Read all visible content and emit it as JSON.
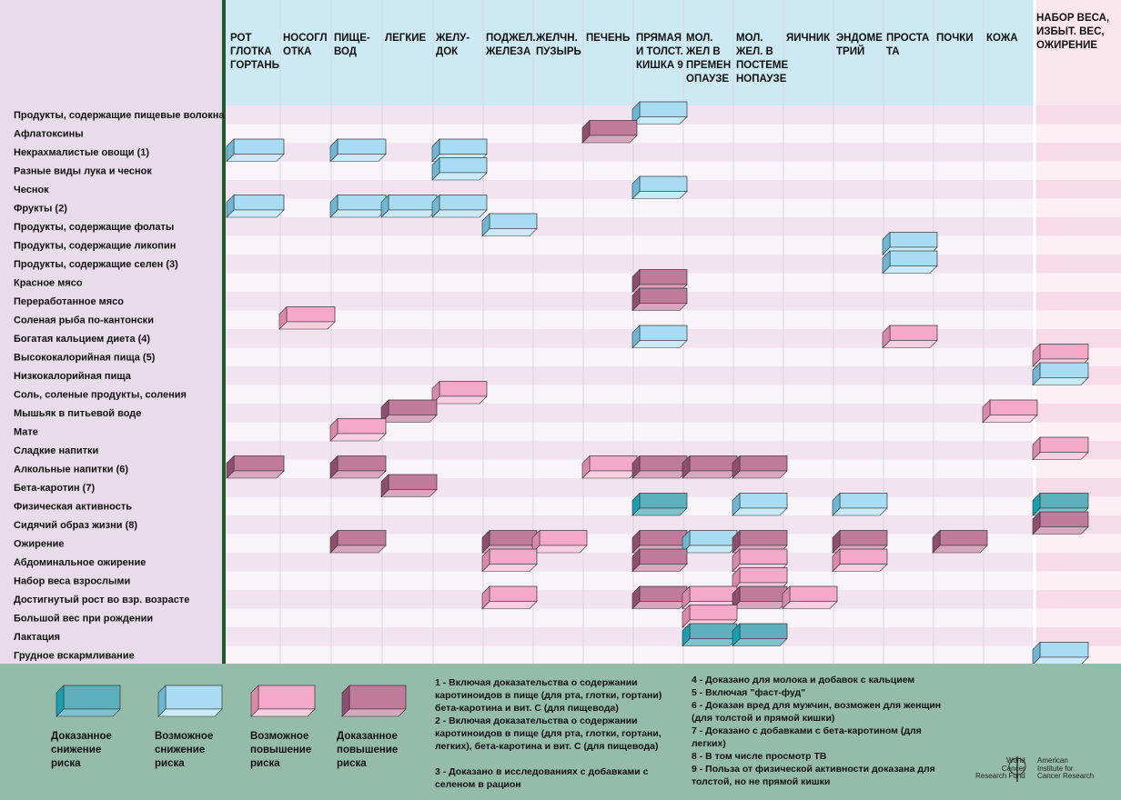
{
  "columns": [
    "РОТ\nГЛОТКА\nГОРТАНЬ",
    "НОСОГЛ\nОТКА",
    "ПИЩЕ-\nВОД",
    "ЛЕГКИЕ",
    "ЖЕЛУ-\nДОК",
    "ПОДЖЕЛ.\nЖЕЛЕЗА",
    "ЖЕЛЧН.\nПУЗЫРЬ",
    "ПЕЧЕНЬ",
    "ПРЯМАЯ\nИ ТОЛСТ.\nКИШКА 9",
    "МОЛ.\nЖЕЛ В\nПРЕМЕН\nОПАУЗЕ",
    "МОЛ.\nЖЕЛ. В\nПОСТЕМЕ\nНОПАУЗЕ",
    "ЯИЧНИК",
    "ЭНДОМЕ\nТРИЙ",
    "ПРОСТА\nТА",
    "ПОЧКИ",
    "КОЖА",
    "НАБОР ВЕСА,\nИЗБЫТ. ВЕС,\nОЖИРЕНИЕ"
  ],
  "rows": [
    "Продукты, содержащие пищевые волокна",
    "Афлатоксины",
    "Некрахмалистые овощи (1)",
    "Разные виды лука и чеснок",
    "Чеснок",
    "Фрукты (2)",
    "Продукты, содержащие фолаты",
    "Продукты, содержащие ликопин",
    "Продукты, содержащие селен (3)",
    "Красное мясо",
    "Переработанное мясо",
    "Соленая рыба по-кантонски",
    "Богатая кальцием диета (4)",
    "Высококалорийная пища (5)",
    "Низкокалорийная пища",
    "Соль, соленые продукты, соления",
    "Мышьяк в питьевой воде",
    "Мате",
    "Сладкие напитки",
    "Алкольные напитки (6)",
    "Бета-каротин (7)",
    "Физическая активность",
    "Сидячий образ жизни (8)",
    "Ожирение",
    "Абдоминальное ожирение",
    "Набор веса взрослыми",
    "Достигнутый рост во взр. возрасте",
    "Большой вес при рождении",
    "Лактация",
    "Грудное вскармливание"
  ],
  "risk_types": {
    "CD": {
      "color": "#5fb0bd",
      "top": "#7cc3ce",
      "side": "#1a9fb0"
    },
    "PD": {
      "color": "#a8dcf3",
      "top": "#c9ebf8",
      "side": "#6fb6d2"
    },
    "PI": {
      "color": "#f4a9c8",
      "top": "#f9cfe0",
      "side": "#d98aaa"
    },
    "CI": {
      "color": "#c07a9a",
      "top": "#d7a7bd",
      "side": "#8e4f6e"
    }
  },
  "cells": [
    {
      "row": 0,
      "col": 8,
      "type": "PD"
    },
    {
      "row": 1,
      "col": 7,
      "type": "CI"
    },
    {
      "row": 2,
      "col": 0,
      "type": "PD"
    },
    {
      "row": 2,
      "col": 2,
      "type": "PD"
    },
    {
      "row": 2,
      "col": 4,
      "type": "PD"
    },
    {
      "row": 3,
      "col": 4,
      "type": "PD"
    },
    {
      "row": 4,
      "col": 8,
      "type": "PD"
    },
    {
      "row": 5,
      "col": 0,
      "type": "PD"
    },
    {
      "row": 5,
      "col": 2,
      "type": "PD"
    },
    {
      "row": 5,
      "col": 3,
      "type": "PD"
    },
    {
      "row": 5,
      "col": 4,
      "type": "PD"
    },
    {
      "row": 6,
      "col": 5,
      "type": "PD"
    },
    {
      "row": 7,
      "col": 13,
      "type": "PD"
    },
    {
      "row": 8,
      "col": 13,
      "type": "PD"
    },
    {
      "row": 9,
      "col": 8,
      "type": "CI"
    },
    {
      "row": 10,
      "col": 8,
      "type": "CI"
    },
    {
      "row": 11,
      "col": 1,
      "type": "PI"
    },
    {
      "row": 12,
      "col": 8,
      "type": "PD"
    },
    {
      "row": 12,
      "col": 13,
      "type": "PI"
    },
    {
      "row": 13,
      "col": 16,
      "type": "PI"
    },
    {
      "row": 14,
      "col": 16,
      "type": "PD"
    },
    {
      "row": 15,
      "col": 4,
      "type": "PI"
    },
    {
      "row": 16,
      "col": 3,
      "type": "CI"
    },
    {
      "row": 16,
      "col": 15,
      "type": "PI"
    },
    {
      "row": 17,
      "col": 2,
      "type": "PI"
    },
    {
      "row": 18,
      "col": 16,
      "type": "PI"
    },
    {
      "row": 19,
      "col": 0,
      "type": "CI"
    },
    {
      "row": 19,
      "col": 2,
      "type": "CI"
    },
    {
      "row": 19,
      "col": 7,
      "type": "PI"
    },
    {
      "row": 19,
      "col": 8,
      "type": "CI"
    },
    {
      "row": 19,
      "col": 9,
      "type": "CI"
    },
    {
      "row": 19,
      "col": 10,
      "type": "CI"
    },
    {
      "row": 20,
      "col": 3,
      "type": "CI"
    },
    {
      "row": 21,
      "col": 8,
      "type": "CD"
    },
    {
      "row": 21,
      "col": 10,
      "type": "PD"
    },
    {
      "row": 21,
      "col": 12,
      "type": "PD"
    },
    {
      "row": 21,
      "col": 16,
      "type": "CD"
    },
    {
      "row": 22,
      "col": 16,
      "type": "CI"
    },
    {
      "row": 23,
      "col": 2,
      "type": "CI"
    },
    {
      "row": 23,
      "col": 5,
      "type": "CI"
    },
    {
      "row": 23,
      "col": 6,
      "type": "PI"
    },
    {
      "row": 23,
      "col": 8,
      "type": "CI"
    },
    {
      "row": 23,
      "col": 9,
      "type": "PD"
    },
    {
      "row": 23,
      "col": 10,
      "type": "CI"
    },
    {
      "row": 23,
      "col": 12,
      "type": "CI"
    },
    {
      "row": 23,
      "col": 14,
      "type": "CI"
    },
    {
      "row": 24,
      "col": 5,
      "type": "PI"
    },
    {
      "row": 24,
      "col": 8,
      "type": "CI"
    },
    {
      "row": 24,
      "col": 10,
      "type": "PI"
    },
    {
      "row": 24,
      "col": 12,
      "type": "PI"
    },
    {
      "row": 25,
      "col": 10,
      "type": "PI"
    },
    {
      "row": 26,
      "col": 5,
      "type": "PI"
    },
    {
      "row": 26,
      "col": 8,
      "type": "CI"
    },
    {
      "row": 26,
      "col": 9,
      "type": "PI"
    },
    {
      "row": 26,
      "col": 10,
      "type": "CI"
    },
    {
      "row": 26,
      "col": 11,
      "type": "PI"
    },
    {
      "row": 27,
      "col": 9,
      "type": "PI"
    },
    {
      "row": 28,
      "col": 9,
      "type": "CD"
    },
    {
      "row": 28,
      "col": 10,
      "type": "CD"
    },
    {
      "row": 29,
      "col": 16,
      "type": "PD"
    }
  ],
  "legend": [
    {
      "type": "CD",
      "label": "Доказанное\nснижение\nриска"
    },
    {
      "type": "PD",
      "label": "Возможное\nснижение\nриска"
    },
    {
      "type": "PI",
      "label": "Возможное\nповышение\nриска"
    },
    {
      "type": "CI",
      "label": "Доказанное\nповышение\nриска"
    }
  ],
  "notes_left": [
    "1 - Включая доказательства о содержании каротиноидов в пище (для рта, глотки, гортани) бета-каротина и вит. С (для пищевода)",
    "2 - Включая доказательства о содержании каротиноидов в пище (для рта, глотки, гортани, легких), бета-каротина и вит. С (для пищевода)",
    "3 - Доказано в исследованиях с добавками с селеном в рацион"
  ],
  "notes_right": [
    "4 - Доказано для молока и добавок с кальцием",
    "5 - Включая \"фаст-фуд\"",
    "6 - Доказан вред для мужчин, возможен для женщин (для толстой и прямой кишки)",
    "7 - Доказано с добавками с бета-каротином (для легких)",
    "8 - В том числе просмотр ТВ",
    "9 - Польза от физической активности доказана для толстой, но не прямой кишки"
  ],
  "logos": {
    "wcrf": "World\nCancer\nResearch Fund",
    "aicr": "American\nInstitute for\nCancer Research"
  },
  "colors": {
    "header_bg": "#cdeaf4",
    "label_bg": "#e8dcea",
    "weight_bg": "#fbe6ee",
    "legend_bg": "#95bbab",
    "divider": "#1e5a2c",
    "stripe_pink": "#f1e3ef",
    "stripe_light": "#f8f4fa"
  }
}
